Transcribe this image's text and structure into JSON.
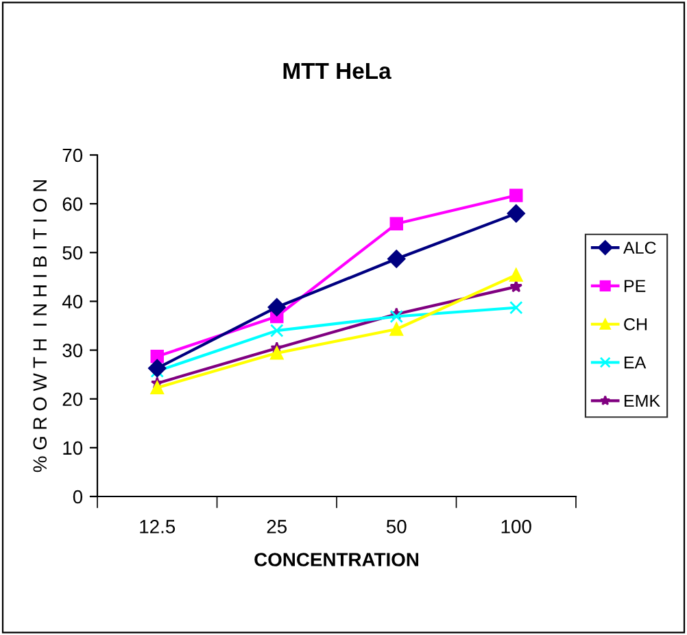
{
  "chart_data": {
    "type": "line",
    "title": "MTT HeLa",
    "xlabel": "CONCENTRATION",
    "ylabel": "% G R O W T H  I N H I B I T I O N",
    "categories": [
      "12.5",
      "25",
      "50",
      "100"
    ],
    "series": [
      {
        "name": "ALC",
        "color": "#000080",
        "marker": "diamond",
        "values": [
          26.3,
          38.8,
          48.7,
          58.0
        ]
      },
      {
        "name": "PE",
        "color": "#ff00ff",
        "marker": "square",
        "values": [
          28.7,
          36.9,
          55.9,
          61.7
        ]
      },
      {
        "name": "CH",
        "color": "#ffff00",
        "marker": "triangle",
        "values": [
          22.3,
          29.4,
          34.3,
          45.4
        ]
      },
      {
        "name": "EA",
        "color": "#00ffff",
        "marker": "cross",
        "values": [
          25.7,
          34.0,
          36.9,
          38.7
        ]
      },
      {
        "name": "EMK",
        "color": "#800080",
        "marker": "star",
        "values": [
          23.2,
          30.4,
          37.4,
          43.0
        ]
      }
    ],
    "ylim": [
      0,
      70
    ],
    "yticks": [
      0,
      10,
      20,
      30,
      40,
      50,
      60,
      70
    ],
    "grid": false,
    "legend": "right",
    "line_style": "solid"
  }
}
